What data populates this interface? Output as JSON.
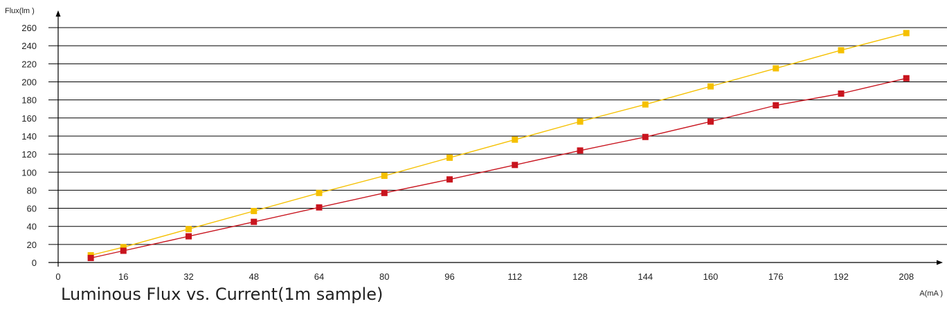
{
  "chart_data": {
    "type": "line",
    "caption": "Luminous Flux vs. Current(1m sample)",
    "xlabel": "A(mA )",
    "ylabel": "Flux(lm )",
    "xlim": [
      0,
      224
    ],
    "ylim": [
      0,
      260
    ],
    "x_ticks": [
      0,
      16,
      32,
      48,
      64,
      80,
      96,
      112,
      128,
      144,
      160,
      176,
      192,
      208
    ],
    "y_ticks": [
      0,
      20,
      40,
      60,
      80,
      100,
      120,
      140,
      160,
      180,
      200,
      220,
      240,
      260
    ],
    "grid": "horizontal",
    "legend": "none",
    "series": [
      {
        "color": "#f5c000",
        "x": [
          8,
          16,
          32,
          48,
          64,
          80,
          96,
          112,
          128,
          144,
          160,
          176,
          192,
          208
        ],
        "y": [
          8,
          17,
          37,
          57,
          77,
          96,
          116,
          136,
          156,
          175,
          195,
          215,
          235,
          254
        ]
      },
      {
        "color": "#c8141e",
        "x": [
          8,
          16,
          32,
          48,
          64,
          80,
          96,
          112,
          128,
          144,
          160,
          176,
          192,
          208
        ],
        "y": [
          5,
          13,
          29,
          45,
          61,
          77,
          92,
          108,
          124,
          139,
          156,
          174,
          187,
          204
        ]
      }
    ]
  }
}
